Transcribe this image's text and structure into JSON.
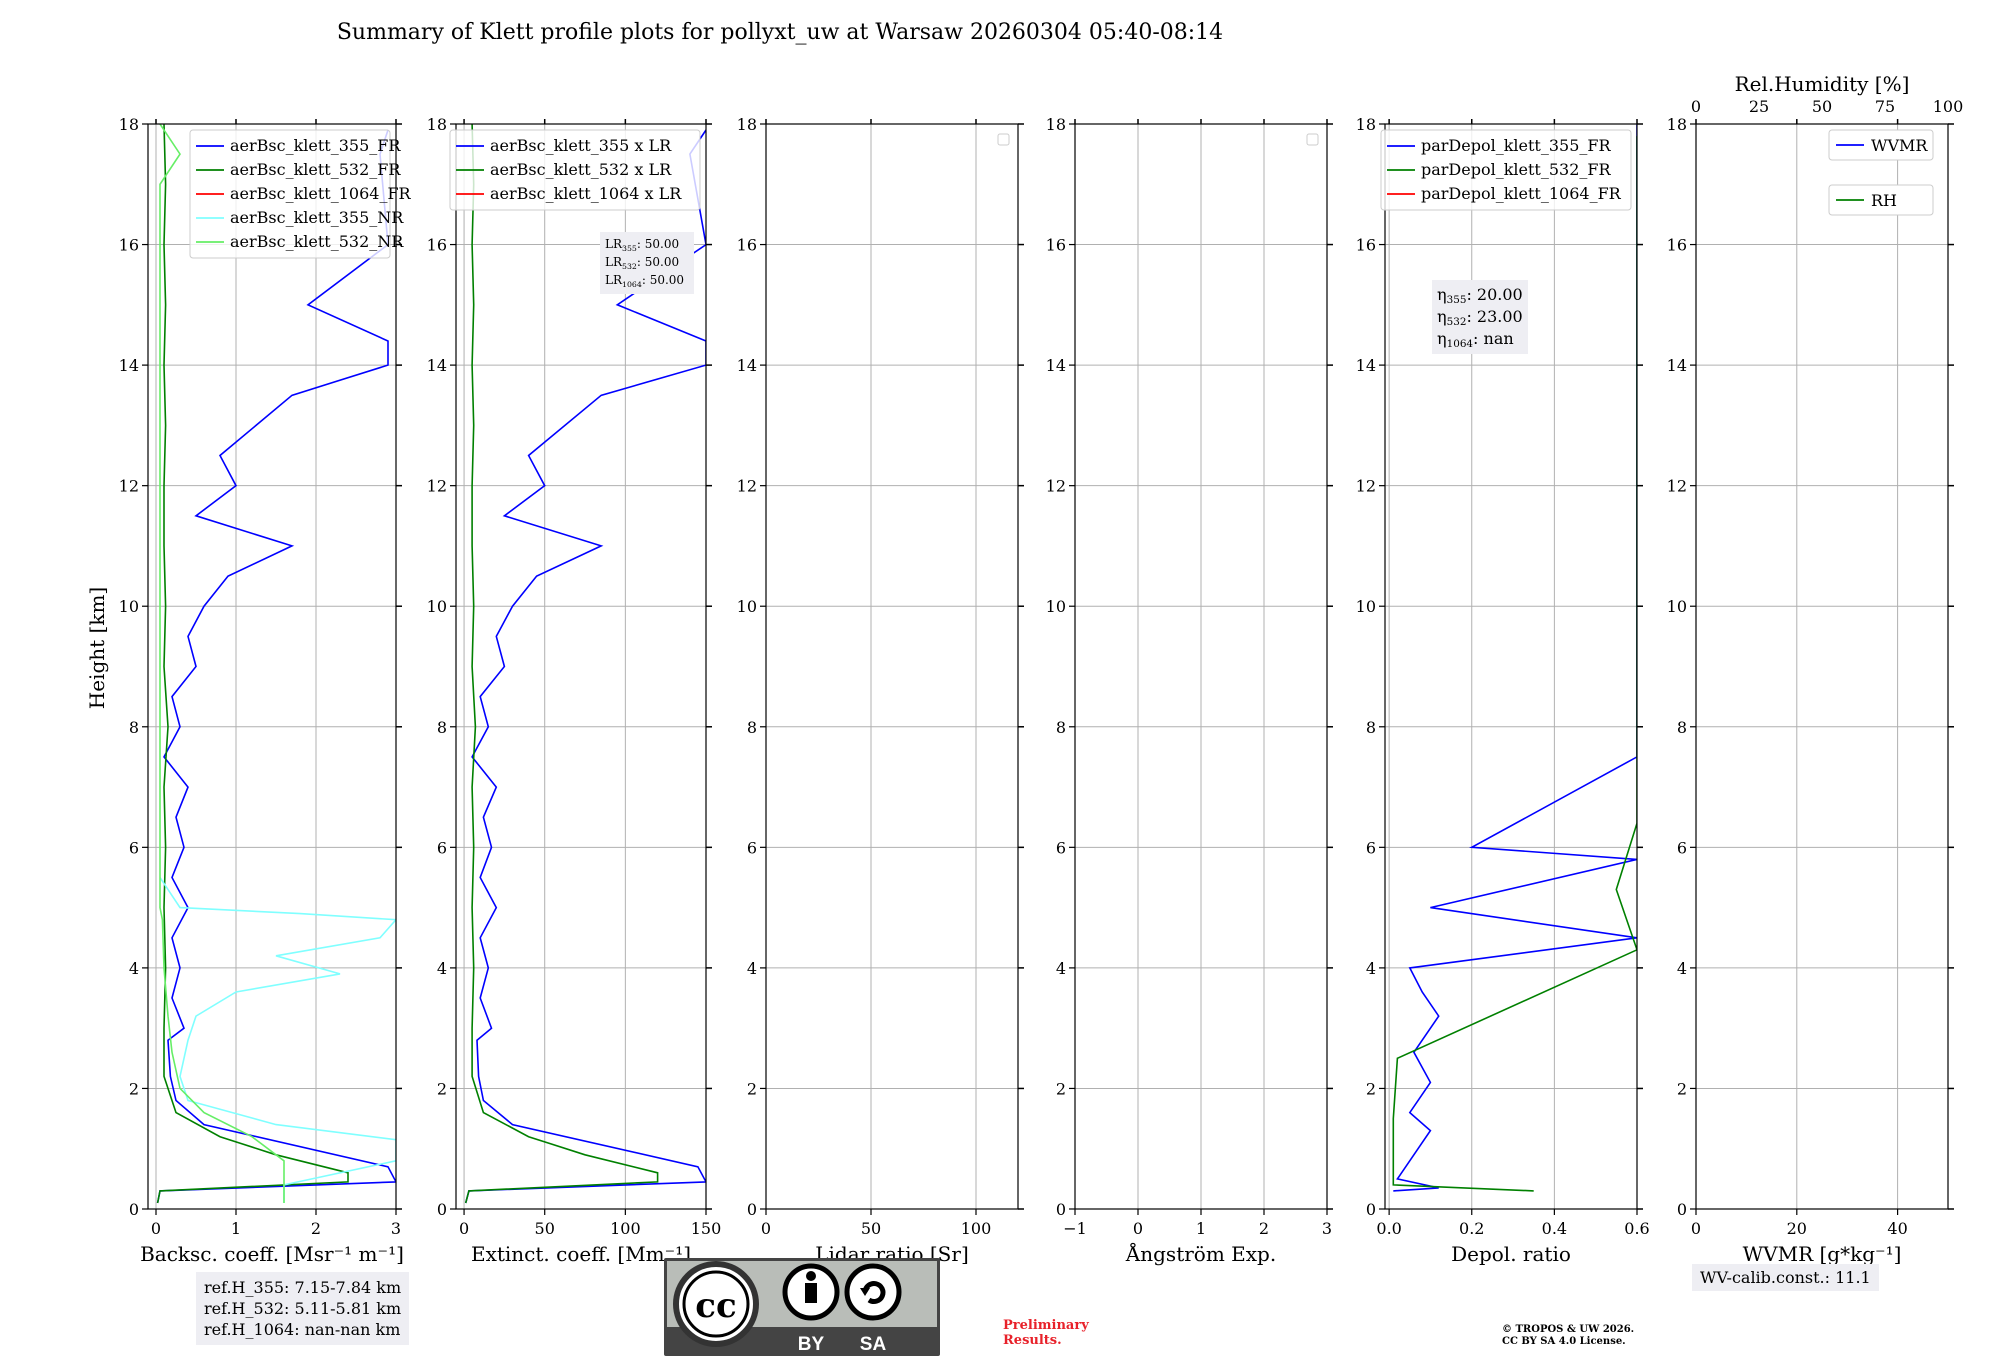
{
  "title": "Summary of Klett profile plots for pollyxt_uw at Warsaw 20260304 05:40-08:14",
  "y_axis": {
    "label": "Height [km]",
    "range": [
      0,
      18
    ],
    "ticks": [
      0,
      2,
      4,
      6,
      8,
      10,
      12,
      14,
      16,
      18
    ]
  },
  "chart_data": [
    {
      "type": "line",
      "panel": "backscatter",
      "xlabel": "Backsc. coeff. [Msr⁻¹ m⁻¹]",
      "xlim": [
        -0.1,
        3
      ],
      "xticks": [
        0,
        1,
        2,
        3
      ],
      "legend_position": "top-right",
      "series": [
        {
          "name": "aerBsc_klett_355_FR",
          "color": "#0000ff",
          "points": [
            [
              0.02,
              0.1
            ],
            [
              0.05,
              0.3
            ],
            [
              3.0,
              0.45
            ],
            [
              2.9,
              0.7
            ],
            [
              0.6,
              1.4
            ],
            [
              0.25,
              1.8
            ],
            [
              0.18,
              2.2
            ],
            [
              0.15,
              2.8
            ],
            [
              0.35,
              3.0
            ],
            [
              0.2,
              3.5
            ],
            [
              0.3,
              4.0
            ],
            [
              0.2,
              4.5
            ],
            [
              0.4,
              5.0
            ],
            [
              0.2,
              5.5
            ],
            [
              0.35,
              6.0
            ],
            [
              0.25,
              6.5
            ],
            [
              0.4,
              7.0
            ],
            [
              0.1,
              7.5
            ],
            [
              0.3,
              8.0
            ],
            [
              0.2,
              8.5
            ],
            [
              0.5,
              9.0
            ],
            [
              0.4,
              9.5
            ],
            [
              0.6,
              10.0
            ],
            [
              0.9,
              10.5
            ],
            [
              1.7,
              11.0
            ],
            [
              0.5,
              11.5
            ],
            [
              1.0,
              12.0
            ],
            [
              0.8,
              12.5
            ],
            [
              1.7,
              13.5
            ],
            [
              2.9,
              14.0
            ],
            [
              2.9,
              14.4
            ],
            [
              1.9,
              15.0
            ],
            [
              2.9,
              16.0
            ],
            [
              2.8,
              17.5
            ],
            [
              2.9,
              17.9
            ]
          ]
        },
        {
          "name": "aerBsc_klett_532_FR",
          "color": "#008000",
          "points": [
            [
              0.02,
              0.1
            ],
            [
              0.05,
              0.3
            ],
            [
              2.4,
              0.45
            ],
            [
              2.4,
              0.6
            ],
            [
              1.5,
              0.9
            ],
            [
              0.8,
              1.2
            ],
            [
              0.25,
              1.6
            ],
            [
              0.1,
              2.2
            ],
            [
              0.1,
              3.0
            ],
            [
              0.12,
              4.0
            ],
            [
              0.1,
              5.0
            ],
            [
              0.12,
              6.0
            ],
            [
              0.1,
              7.0
            ],
            [
              0.15,
              8.0
            ],
            [
              0.1,
              9.0
            ],
            [
              0.12,
              10.0
            ],
            [
              0.1,
              11.0
            ],
            [
              0.1,
              12.0
            ],
            [
              0.12,
              13.0
            ],
            [
              0.1,
              14.0
            ],
            [
              0.12,
              15.0
            ],
            [
              0.1,
              16.0
            ],
            [
              0.12,
              17.0
            ],
            [
              0.1,
              18.0
            ]
          ]
        },
        {
          "name": "aerBsc_klett_1064_FR",
          "color": "#ff0000",
          "points": []
        },
        {
          "name": "aerBsc_klett_355_NR",
          "color": "#80ffff",
          "points": [
            [
              1.6,
              0.1
            ],
            [
              1.6,
              0.4
            ],
            [
              3.0,
              0.8
            ],
            [
              3.0,
              1.15
            ],
            [
              1.5,
              1.4
            ],
            [
              0.4,
              1.8
            ],
            [
              0.3,
              2.2
            ],
            [
              0.4,
              2.8
            ],
            [
              0.5,
              3.2
            ],
            [
              1.0,
              3.6
            ],
            [
              2.3,
              3.9
            ],
            [
              1.5,
              4.2
            ],
            [
              2.8,
              4.5
            ],
            [
              3.0,
              4.8
            ],
            [
              1.8,
              4.9
            ],
            [
              0.3,
              5.0
            ],
            [
              0.05,
              5.5
            ]
          ]
        },
        {
          "name": "aerBsc_klett_532_NR",
          "color": "#66ee66",
          "points": [
            [
              1.6,
              0.1
            ],
            [
              1.6,
              0.3
            ],
            [
              1.6,
              0.8
            ],
            [
              1.2,
              1.2
            ],
            [
              0.6,
              1.6
            ],
            [
              0.3,
              2.0
            ],
            [
              0.2,
              2.6
            ],
            [
              0.15,
              3.2
            ],
            [
              0.1,
              4.0
            ],
            [
              0.08,
              4.8
            ],
            [
              0.05,
              5.0
            ],
            [
              0.05,
              17.0
            ],
            [
              0.3,
              17.5
            ],
            [
              0.05,
              18.0
            ]
          ]
        }
      ]
    },
    {
      "type": "line",
      "panel": "extinction",
      "xlabel": "Extinct. coeff. [Mm⁻¹]",
      "xlim": [
        -5,
        150
      ],
      "xticks": [
        0,
        50,
        100,
        150
      ],
      "legend_position": "top-right",
      "series": [
        {
          "name": "aerBsc_klett_355 x LR",
          "color": "#0000ff",
          "points": [
            [
              1,
              0.1
            ],
            [
              3,
              0.3
            ],
            [
              150,
              0.45
            ],
            [
              145,
              0.7
            ],
            [
              30,
              1.4
            ],
            [
              12,
              1.8
            ],
            [
              9,
              2.2
            ],
            [
              8,
              2.8
            ],
            [
              17,
              3.0
            ],
            [
              10,
              3.5
            ],
            [
              15,
              4.0
            ],
            [
              10,
              4.5
            ],
            [
              20,
              5.0
            ],
            [
              10,
              5.5
            ],
            [
              17,
              6.0
            ],
            [
              12,
              6.5
            ],
            [
              20,
              7.0
            ],
            [
              5,
              7.5
            ],
            [
              15,
              8.0
            ],
            [
              10,
              8.5
            ],
            [
              25,
              9.0
            ],
            [
              20,
              9.5
            ],
            [
              30,
              10.0
            ],
            [
              45,
              10.5
            ],
            [
              85,
              11.0
            ],
            [
              25,
              11.5
            ],
            [
              50,
              12.0
            ],
            [
              40,
              12.5
            ],
            [
              85,
              13.5
            ],
            [
              150,
              14.0
            ],
            [
              150,
              14.4
            ],
            [
              95,
              15.0
            ],
            [
              150,
              16.0
            ],
            [
              140,
              17.5
            ],
            [
              150,
              17.9
            ]
          ]
        },
        {
          "name": "aerBsc_klett_532 x LR",
          "color": "#008000",
          "points": [
            [
              1,
              0.1
            ],
            [
              3,
              0.3
            ],
            [
              120,
              0.45
            ],
            [
              120,
              0.6
            ],
            [
              75,
              0.9
            ],
            [
              40,
              1.2
            ],
            [
              12,
              1.6
            ],
            [
              5,
              2.2
            ],
            [
              5,
              3.0
            ],
            [
              6,
              4.0
            ],
            [
              5,
              5.0
            ],
            [
              6,
              6.0
            ],
            [
              5,
              7.0
            ],
            [
              7,
              8.0
            ],
            [
              5,
              9.0
            ],
            [
              6,
              10.0
            ],
            [
              5,
              11.0
            ],
            [
              5,
              12.0
            ],
            [
              6,
              13.0
            ],
            [
              5,
              14.0
            ],
            [
              6,
              15.0
            ],
            [
              5,
              16.0
            ],
            [
              6,
              17.0
            ],
            [
              5,
              18.0
            ]
          ]
        },
        {
          "name": "aerBsc_klett_1064 x LR",
          "color": "#ff0000",
          "points": []
        }
      ],
      "annotations": [
        {
          "sub": "355",
          "value": "50.00"
        },
        {
          "sub": "532",
          "value": "50.00"
        },
        {
          "sub": "1064",
          "value": "50.00"
        }
      ]
    },
    {
      "type": "line",
      "panel": "lidar-ratio",
      "xlabel": "Lidar ratio [Sr]",
      "xlim": [
        0,
        120
      ],
      "xticks": [
        0,
        50,
        100
      ],
      "series": []
    },
    {
      "type": "line",
      "panel": "angstrom",
      "xlabel": "Ångström Exp.",
      "xlim": [
        -1,
        3
      ],
      "xticks": [
        -1,
        0,
        1,
        2,
        3
      ],
      "series": []
    },
    {
      "type": "line",
      "panel": "depol",
      "xlabel": "Depol. ratio",
      "xlim": [
        -0.01,
        0.6
      ],
      "xticks": [
        0.0,
        0.2,
        0.4,
        0.6
      ],
      "xtick_labels": [
        "0.0",
        "0.2",
        "0.4",
        "0.6"
      ],
      "legend_position": "top-right",
      "series": [
        {
          "name": "parDepol_klett_355_FR",
          "color": "#0000ff",
          "points": [
            [
              0.01,
              0.3
            ],
            [
              0.12,
              0.35
            ],
            [
              0.02,
              0.5
            ],
            [
              0.1,
              1.3
            ],
            [
              0.05,
              1.6
            ],
            [
              0.1,
              2.1
            ],
            [
              0.06,
              2.6
            ],
            [
              0.12,
              3.2
            ],
            [
              0.08,
              3.6
            ],
            [
              0.05,
              4.0
            ],
            [
              0.6,
              4.5
            ],
            [
              0.1,
              5.0
            ],
            [
              0.6,
              5.8
            ],
            [
              0.2,
              6.0
            ],
            [
              0.6,
              7.5
            ],
            [
              0.6,
              8.5
            ],
            [
              0.6,
              9.5
            ],
            [
              0.6,
              10.5
            ],
            [
              0.6,
              11.5
            ],
            [
              0.6,
              12.5
            ],
            [
              0.6,
              13.5
            ],
            [
              0.6,
              14.5
            ],
            [
              0.6,
              15.5
            ],
            [
              0.6,
              16.5
            ],
            [
              0.6,
              17.5
            ],
            [
              0.6,
              18.0
            ]
          ]
        },
        {
          "name": "parDepol_klett_532_FR",
          "color": "#008000",
          "points": [
            [
              0.35,
              0.3
            ],
            [
              0.01,
              0.4
            ],
            [
              0.01,
              1.5
            ],
            [
              0.02,
              2.5
            ],
            [
              0.6,
              4.3
            ],
            [
              0.55,
              5.3
            ],
            [
              0.6,
              6.4
            ],
            [
              0.6,
              7.3
            ],
            [
              0.6,
              8.8
            ],
            [
              0.6,
              10.6
            ],
            [
              0.6,
              11.9
            ],
            [
              0.6,
              13.2
            ],
            [
              0.6,
              14.0
            ],
            [
              0.6,
              15.6
            ],
            [
              0.6,
              16.7
            ],
            [
              0.6,
              17.8
            ]
          ]
        },
        {
          "name": "parDepol_klett_1064_FR",
          "color": "#ff0000",
          "points": []
        }
      ],
      "annotations": [
        {
          "sub": "355",
          "value": "20.00"
        },
        {
          "sub": "532",
          "value": "23.00"
        },
        {
          "sub": "1064",
          "value": "nan"
        }
      ]
    },
    {
      "type": "line",
      "panel": "wvmr",
      "xlabel": "WVMR [g*kg⁻¹]",
      "xlim": [
        0,
        50
      ],
      "xticks": [
        0,
        20,
        40
      ],
      "top_xlabel": "Rel.Humidity [%]",
      "top_xlim": [
        0,
        100
      ],
      "top_xticks": [
        0,
        25,
        50,
        75,
        100
      ],
      "series": [
        {
          "name": "WVMR",
          "color": "#0000ff",
          "points": []
        },
        {
          "name": "RH",
          "color": "#008000",
          "points": []
        }
      ]
    }
  ],
  "ref_heights": [
    "ref.H_355: 7.15-7.84 km",
    "ref.H_532: 5.11-5.81 km",
    "ref.H_1064: nan-nan km"
  ],
  "wv_calib": "WV-calib.const.: 11.1",
  "preliminary": [
    "Preliminary",
    "Results."
  ],
  "copyright": [
    "© TROPOS & UW 2026.",
    "CC BY SA 4.0 License."
  ],
  "license_logo": {
    "by": "BY",
    "sa": "SA"
  },
  "colors": {
    "axis": "#000000",
    "grid": "#b0b0b0",
    "legend_bg": "#ffffff",
    "annot_bg": "#eeeef3"
  }
}
